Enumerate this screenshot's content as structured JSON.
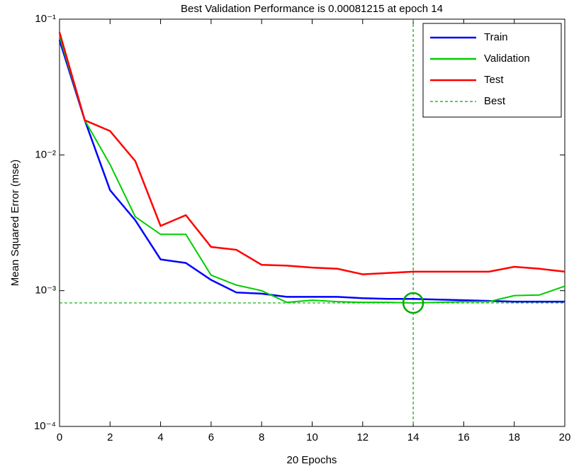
{
  "chart_data": {
    "type": "line",
    "title": "Best Validation Performance is 0.00081215 at epoch 14",
    "xlabel": "20 Epochs",
    "ylabel": "Mean Squared Error  (mse)",
    "x": [
      0,
      1,
      2,
      3,
      4,
      5,
      6,
      7,
      8,
      9,
      10,
      11,
      12,
      13,
      14,
      15,
      16,
      17,
      18,
      19,
      20
    ],
    "series": [
      {
        "name": "Train",
        "color": "#0000ff",
        "values": [
          0.07,
          0.018,
          0.0055,
          0.0033,
          0.0017,
          0.0016,
          0.0012,
          0.00097,
          0.00095,
          0.0009,
          0.0009,
          0.0009,
          0.00088,
          0.00087,
          0.00087,
          0.00086,
          0.00085,
          0.00084,
          0.00083,
          0.00083,
          0.00083
        ]
      },
      {
        "name": "Validation",
        "color": "#00cc00",
        "values": [
          0.075,
          0.018,
          0.0085,
          0.0035,
          0.0026,
          0.0026,
          0.0013,
          0.0011,
          0.001,
          0.00082,
          0.00085,
          0.00083,
          0.00082,
          0.00082,
          0.00081215,
          0.00082,
          0.00083,
          0.00083,
          0.00092,
          0.00093,
          0.00108
        ]
      },
      {
        "name": "Test",
        "color": "#ff0000",
        "values": [
          0.08,
          0.018,
          0.015,
          0.009,
          0.003,
          0.0036,
          0.0021,
          0.002,
          0.00155,
          0.00153,
          0.00148,
          0.00145,
          0.00132,
          0.00135,
          0.00138,
          0.00138,
          0.00138,
          0.00138,
          0.0015,
          0.00145,
          0.00138
        ]
      }
    ],
    "best": {
      "name": "Best",
      "color": "#00aa00",
      "epoch": 14,
      "value": 0.00081215
    },
    "xlim": [
      0,
      20
    ],
    "xticks": [
      0,
      2,
      4,
      6,
      8,
      10,
      12,
      14,
      16,
      18,
      20
    ],
    "ylim": [
      0.0001,
      0.1
    ],
    "yscale": "log",
    "yticks": [
      {
        "value": 0.0001,
        "label": "10⁻⁴"
      },
      {
        "value": 0.001,
        "label": "10⁻³"
      },
      {
        "value": 0.01,
        "label": "10⁻²"
      },
      {
        "value": 0.1,
        "label": "10⁻¹"
      }
    ],
    "legend": "upper right"
  }
}
